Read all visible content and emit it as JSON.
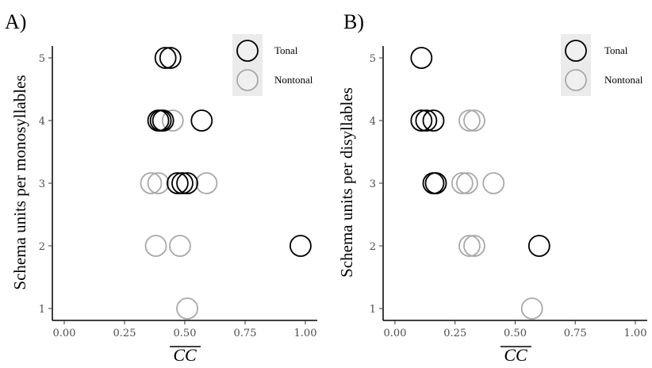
{
  "figure": {
    "panels": [
      {
        "letter": "A)",
        "ylabel": "Schema units per monosyllables",
        "xlabel": "CC",
        "legend": [
          "Tonal",
          "Nontonal"
        ]
      },
      {
        "letter": "B)",
        "ylabel": "Schema units per disyllables",
        "xlabel": "CC",
        "legend": [
          "Tonal",
          "Nontonal"
        ]
      }
    ]
  },
  "colors": {
    "tonal": "#000000",
    "nontonal": "#a9a9a9",
    "legend_bg": "#ebebeb"
  },
  "chart_data": [
    {
      "type": "scatter",
      "xlim": [
        0,
        1
      ],
      "ylim": [
        1,
        5
      ],
      "x_ticks": [
        "0.00",
        "0.25",
        "0.50",
        "0.75",
        "1.00"
      ],
      "y_ticks": [
        "1",
        "2",
        "3",
        "4",
        "5"
      ],
      "xlabel": "CC",
      "ylabel": "Schema units per monosyllables",
      "legend_position": "top-right",
      "series": [
        {
          "name": "Tonal",
          "points": [
            {
              "x": 0.42,
              "y": 5
            },
            {
              "x": 0.44,
              "y": 5
            },
            {
              "x": 0.39,
              "y": 4
            },
            {
              "x": 0.4,
              "y": 4
            },
            {
              "x": 0.41,
              "y": 4
            },
            {
              "x": 0.57,
              "y": 4
            },
            {
              "x": 0.47,
              "y": 3
            },
            {
              "x": 0.49,
              "y": 3
            },
            {
              "x": 0.51,
              "y": 3
            },
            {
              "x": 0.98,
              "y": 2
            }
          ]
        },
        {
          "name": "Nontonal",
          "points": [
            {
              "x": 0.45,
              "y": 4
            },
            {
              "x": 0.36,
              "y": 3
            },
            {
              "x": 0.39,
              "y": 3
            },
            {
              "x": 0.59,
              "y": 3
            },
            {
              "x": 0.38,
              "y": 2
            },
            {
              "x": 0.48,
              "y": 2
            },
            {
              "x": 0.51,
              "y": 1
            }
          ]
        }
      ]
    },
    {
      "type": "scatter",
      "xlim": [
        0,
        1
      ],
      "ylim": [
        1,
        5
      ],
      "x_ticks": [
        "0.00",
        "0.25",
        "0.50",
        "0.75",
        "1.00"
      ],
      "y_ticks": [
        "1",
        "2",
        "3",
        "4",
        "5"
      ],
      "xlabel": "CC",
      "ylabel": "Schema units per disyllables",
      "legend_position": "top-right",
      "series": [
        {
          "name": "Tonal",
          "points": [
            {
              "x": 0.11,
              "y": 5
            },
            {
              "x": 0.11,
              "y": 4
            },
            {
              "x": 0.13,
              "y": 4
            },
            {
              "x": 0.16,
              "y": 4
            },
            {
              "x": 0.16,
              "y": 3
            },
            {
              "x": 0.17,
              "y": 3
            },
            {
              "x": 0.6,
              "y": 2
            }
          ]
        },
        {
          "name": "Nontonal",
          "points": [
            {
              "x": 0.31,
              "y": 4
            },
            {
              "x": 0.33,
              "y": 4
            },
            {
              "x": 0.28,
              "y": 3
            },
            {
              "x": 0.3,
              "y": 3
            },
            {
              "x": 0.41,
              "y": 3
            },
            {
              "x": 0.31,
              "y": 2
            },
            {
              "x": 0.33,
              "y": 2
            },
            {
              "x": 0.57,
              "y": 1
            }
          ]
        }
      ]
    }
  ]
}
